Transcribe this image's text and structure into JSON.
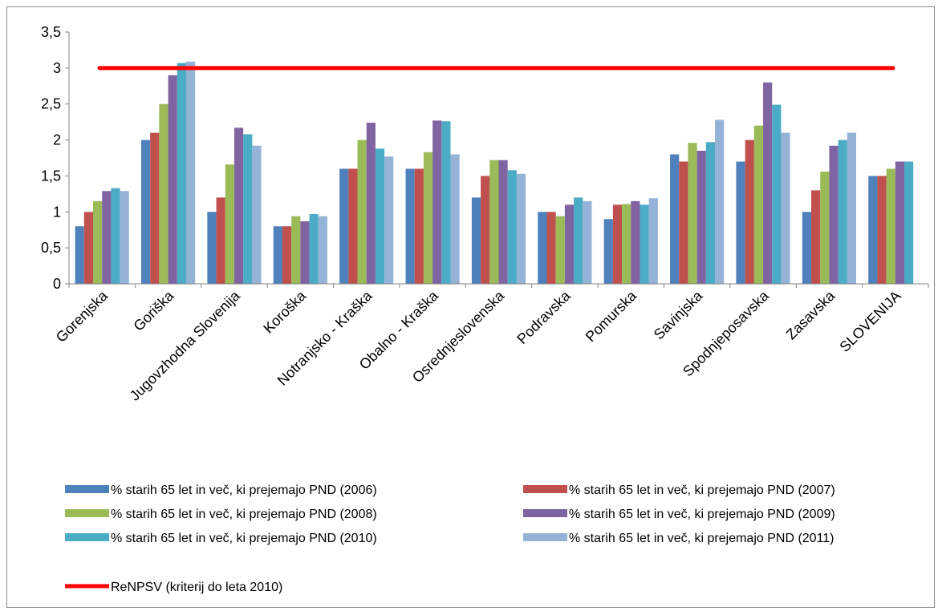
{
  "chart_data": {
    "type": "bar",
    "categories": [
      "Gorenjska",
      "Goriška",
      "Jugovzhodna Slovenija",
      "Koroška",
      "Notranjsko - Kraška",
      "Obalno - Kraška",
      "Osrednjeslovenska",
      "Podravska",
      "Pomurska",
      "Savinjska",
      "Spodnjeposavska",
      "Zasavska",
      "SLOVENIJA"
    ],
    "series": [
      {
        "name": "% starih 65 let in več, ki prejemajo PND (2006)",
        "color": "#4F81BD",
        "values": [
          0.8,
          2.0,
          1.0,
          0.8,
          1.6,
          1.6,
          1.2,
          1.0,
          0.9,
          1.8,
          1.7,
          1.0,
          1.5
        ]
      },
      {
        "name": "% starih 65 let in več, ki prejemajo PND (2007)",
        "color": "#C0504D",
        "values": [
          1.0,
          2.1,
          1.2,
          0.8,
          1.6,
          1.6,
          1.5,
          1.0,
          1.1,
          1.7,
          2.0,
          1.3,
          1.5
        ]
      },
      {
        "name": "% starih 65 let in več, ki prejemajo PND (2008)",
        "color": "#9BBB59",
        "values": [
          1.15,
          2.5,
          1.66,
          0.94,
          2.0,
          1.83,
          1.72,
          0.94,
          1.11,
          1.96,
          2.2,
          1.56,
          1.6
        ]
      },
      {
        "name": "% starih 65 let in več, ki prejemajo PND (2009)",
        "color": "#8064A2",
        "values": [
          1.29,
          2.9,
          2.17,
          0.87,
          2.24,
          2.27,
          1.72,
          1.1,
          1.15,
          1.85,
          2.8,
          1.92,
          1.7
        ]
      },
      {
        "name": "% starih 65 let in več, ki prejemajo PND (2010)",
        "color": "#4BACC6",
        "values": [
          1.33,
          3.07,
          2.08,
          0.97,
          1.88,
          2.26,
          1.58,
          1.2,
          1.1,
          1.97,
          2.49,
          2.0,
          1.7
        ]
      },
      {
        "name": "% starih 65 let in več, ki prejemajo PND (2011)",
        "color": "#95B3D7",
        "values": [
          1.29,
          3.09,
          1.92,
          0.94,
          1.77,
          1.8,
          1.53,
          1.15,
          1.19,
          2.28,
          2.1,
          2.1,
          null
        ]
      }
    ],
    "reference_line": {
      "name": "ReNPSV (kriterij do leta 2010)",
      "value": 3,
      "color": "#FF0000"
    },
    "ylim": [
      0,
      3.5
    ],
    "yticks": [
      "0",
      "0,5",
      "1",
      "1,5",
      "2",
      "2,5",
      "3",
      "3,5"
    ],
    "grid": false,
    "legend_position": "bottom",
    "title": "",
    "xlabel": "",
    "ylabel": ""
  }
}
